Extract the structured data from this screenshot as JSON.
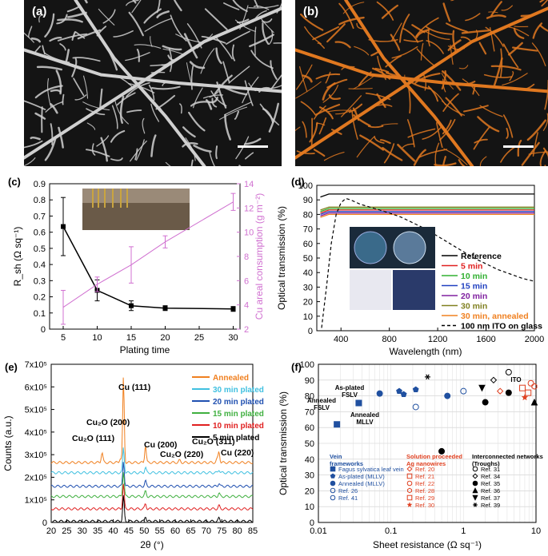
{
  "figure": {
    "panel_a": {
      "label": "(a)",
      "description_color": "#d0d0d0"
    },
    "panel_b": {
      "label": "(b)",
      "description_color": "#e07820"
    }
  },
  "chart_data": [
    {
      "panel": "(c)",
      "type": "line",
      "xlabel": "Plating time",
      "ylabel": "R_sh (Ω sq⁻¹)",
      "ylabel_right": "Cu areal consumption (g m⁻²)",
      "xlim": [
        3,
        31
      ],
      "ylim": [
        0,
        0.9
      ],
      "ylim_right": [
        2,
        14
      ],
      "x_ticks": [
        5,
        10,
        15,
        20,
        25,
        30
      ],
      "y_ticks": [
        0,
        0.1,
        0.2,
        0.3,
        0.4,
        0.5,
        0.6,
        0.7,
        0.8,
        0.9
      ],
      "y_ticks_right": [
        2,
        4,
        6,
        8,
        10,
        12,
        14
      ],
      "series": [
        {
          "axis": "left",
          "color": "#000000",
          "x": [
            5,
            10,
            15,
            20,
            30
          ],
          "y": [
            0.635,
            0.24,
            0.145,
            0.13,
            0.125
          ],
          "err": [
            0.18,
            0.065,
            0.03,
            0.015,
            0.015
          ]
        },
        {
          "axis": "right",
          "color": "#d070d0",
          "x": [
            5,
            10,
            15,
            20,
            30
          ],
          "y": [
            3.8,
            5.7,
            7.3,
            9.2,
            12.5
          ],
          "err": [
            1.4,
            0.6,
            1.5,
            0.5,
            0.7
          ]
        }
      ]
    },
    {
      "panel": "(d)",
      "type": "line",
      "xlabel": "Wavelength (nm)",
      "ylabel": "Optical transmission (%)",
      "xlim": [
        200,
        2000
      ],
      "ylim": [
        0,
        100
      ],
      "x_ticks": [
        400,
        800,
        1200,
        1600,
        2000
      ],
      "y_ticks": [
        0,
        10,
        20,
        30,
        40,
        50,
        60,
        70,
        80,
        90,
        100
      ],
      "series": [
        {
          "name": "Reference",
          "color": "#000000",
          "level": 94
        },
        {
          "name": "5 min",
          "color": "#e02020",
          "level": 83
        },
        {
          "name": "10 min",
          "color": "#30b030",
          "level": 84
        },
        {
          "name": "15 min",
          "color": "#2040c0",
          "level": 82
        },
        {
          "name": "20 min",
          "color": "#8020a0",
          "level": 81
        },
        {
          "name": "30 min",
          "color": "#808020",
          "level": 85
        },
        {
          "name": "30 min, annealed",
          "color": "#f08020",
          "level": 80
        },
        {
          "name": "100 nm ITO on glass",
          "color": "#000000",
          "dashed": true,
          "x": [
            240,
            280,
            320,
            360,
            400,
            440,
            480,
            560,
            640,
            720,
            800,
            900,
            1000,
            1100,
            1200,
            1300,
            1400,
            1500,
            1600,
            1700,
            1800,
            1900,
            2000
          ],
          "y": [
            2,
            30,
            60,
            80,
            88,
            91,
            90,
            87,
            85,
            83,
            81,
            78,
            74,
            70,
            65,
            60,
            55,
            50,
            46,
            42,
            39,
            36,
            34
          ]
        }
      ]
    },
    {
      "panel": "(e)",
      "type": "line",
      "xlabel": "2θ (°)",
      "ylabel": "Counts (a.u.)",
      "xlim": [
        20,
        85
      ],
      "ylim": [
        0,
        7
      ],
      "x_ticks": [
        20,
        25,
        30,
        35,
        40,
        45,
        50,
        55,
        60,
        65,
        70,
        75,
        80,
        85
      ],
      "y_tick_labels": [
        "0",
        "1x10⁵",
        "2x10⁵",
        "3x10⁵",
        "4x10⁵",
        "5x10⁵",
        "6x10⁵",
        "7x10⁵"
      ],
      "series": [
        {
          "name": "Annealed",
          "color": "#f08020",
          "offset": 2.65
        },
        {
          "name": "30 min plated",
          "color": "#40c0e0",
          "offset": 2.2
        },
        {
          "name": "20 min plated",
          "color": "#2050b0",
          "offset": 1.6
        },
        {
          "name": "15 min plated",
          "color": "#40b040",
          "offset": 1.15
        },
        {
          "name": "10 min plated",
          "color": "#e02020",
          "offset": 0.6
        },
        {
          "name": "5 min plated",
          "color": "#000000",
          "offset": 0.05
        }
      ],
      "peaks": [
        {
          "label": "Cu (111)",
          "x": 43.3
        },
        {
          "label": "Cu (200)",
          "x": 50.4
        },
        {
          "label": "Cu (220)",
          "x": 74.1
        },
        {
          "label": "Cu₂O (111)",
          "x": 36.4
        },
        {
          "label": "Cu₂O (200)",
          "x": 42.3
        },
        {
          "label": "Cu₂O (220)",
          "x": 61.4
        },
        {
          "label": "Cu₂O (311)",
          "x": 73.5
        }
      ]
    },
    {
      "panel": "(f)",
      "type": "scatter",
      "xlabel": "Sheet resistance (Ω sq⁻¹)",
      "ylabel": "Optical transmission (%)",
      "xscale": "log",
      "xlim": [
        0.01,
        10
      ],
      "ylim": [
        0,
        100
      ],
      "x_tick_labels": [
        "0.01",
        "0.1",
        "1",
        "10"
      ],
      "y_ticks": [
        0,
        10,
        20,
        30,
        40,
        50,
        60,
        70,
        80,
        90,
        100
      ],
      "annotations": [
        "Annealed FSLV",
        "As-plated FSLV",
        "Annealed MLLV",
        "ITO"
      ],
      "legend_groups": [
        "Vein frameworks",
        "Solution proceeded Ag nanowires",
        "Interconnected networks (Troughs)"
      ],
      "series": [
        {
          "name": "Fagus sylvatica leaf vein",
          "color": "#2050a0",
          "marker": "square",
          "points": [
            [
              0.018,
              62
            ],
            [
              0.036,
              75.5
            ]
          ]
        },
        {
          "name": "As-plated (MLLV)",
          "color": "#2050a0",
          "marker": "pentagon",
          "points": [
            [
              0.13,
              83
            ],
            [
              0.15,
              81
            ],
            [
              0.22,
              84
            ]
          ]
        },
        {
          "name": "Annealed (MLLV)",
          "color": "#2050a0",
          "marker": "circle",
          "points": [
            [
              0.07,
              81.5
            ],
            [
              0.6,
              80
            ]
          ]
        },
        {
          "name": "Ref. 26",
          "color": "#2050a0",
          "marker": "open-circle",
          "points": [
            [
              0.22,
              73
            ]
          ]
        },
        {
          "name": "Ref. 41",
          "color": "#2050a0",
          "marker": "open-circle",
          "points": [
            [
              1.0,
              83
            ]
          ]
        },
        {
          "name": "Ref. 20",
          "color": "#e04020",
          "marker": "open-diamond",
          "points": [
            [
              3.2,
              83
            ]
          ]
        },
        {
          "name": "Ref. 21",
          "color": "#e04020",
          "marker": "open-square",
          "points": [
            [
              6.5,
              85
            ]
          ]
        },
        {
          "name": "Ref. 22",
          "color": "#e04020",
          "marker": "open-circle",
          "points": [
            [
              8.5,
              88
            ]
          ]
        },
        {
          "name": "Ref. 28",
          "color": "#e04020",
          "marker": "open-hex",
          "points": [
            [
              9.5,
              86
            ]
          ]
        },
        {
          "name": "Ref. 29",
          "color": "#e04020",
          "marker": "open-square",
          "points": [
            [
              7.8,
              82
            ]
          ]
        },
        {
          "name": "Ref. 30",
          "color": "#e04020",
          "marker": "star",
          "points": [
            [
              7.0,
              79
            ]
          ]
        },
        {
          "name": "Ref. 31",
          "color": "#000000",
          "marker": "open-circle",
          "points": [
            [
              4.2,
              95
            ]
          ]
        },
        {
          "name": "Ref. 34",
          "color": "#000000",
          "marker": "open-diamond",
          "points": [
            [
              2.6,
              90
            ]
          ]
        },
        {
          "name": "Ref. 35",
          "color": "#000000",
          "marker": "circle",
          "points": [
            [
              0.5,
              45
            ],
            [
              2.0,
              76
            ],
            [
              4.2,
              82
            ]
          ]
        },
        {
          "name": "Ref. 36",
          "color": "#000000",
          "marker": "triangle",
          "points": [
            [
              9.5,
              76
            ]
          ]
        },
        {
          "name": "Ref. 37",
          "color": "#000000",
          "marker": "triangle-down",
          "points": [
            [
              1.8,
              85
            ]
          ]
        },
        {
          "name": "Ref. 39",
          "color": "#000000",
          "marker": "asterisk",
          "points": [
            [
              0.32,
              92
            ]
          ]
        }
      ]
    }
  ]
}
